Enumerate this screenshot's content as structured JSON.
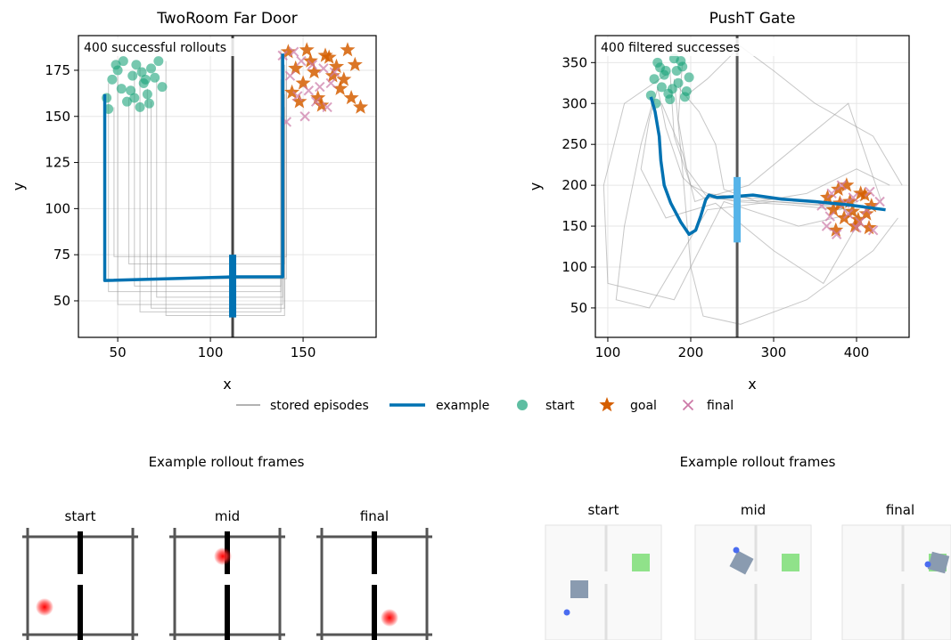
{
  "chart_data": [
    {
      "type": "line",
      "title": "TwoRoom Far Door",
      "xlabel": "x",
      "ylabel": "y",
      "annotation": "400 successful rollouts",
      "xlim": [
        28.8,
        189.4
      ],
      "ylim": [
        30.2,
        193.8
      ],
      "xticks": [
        50,
        100,
        150
      ],
      "yticks": [
        50,
        75,
        100,
        125,
        150,
        175
      ],
      "grid": true,
      "wall": {
        "x": 112,
        "color": "#444444"
      },
      "door": {
        "x": 112,
        "y": [
          41,
          75
        ],
        "color": "#0072b2"
      },
      "series": [
        {
          "name": "stored episodes",
          "marker": "line",
          "color": "#999999",
          "episodes": [
            {
              "x": [
                45,
                45,
                138,
                138
              ],
              "y": [
                168,
                55,
                55,
                170
              ]
            },
            {
              "x": [
                50,
                50,
                139,
                139
              ],
              "y": [
                172,
                48,
                48,
                160
              ]
            },
            {
              "x": [
                56,
                56,
                140,
                140
              ],
              "y": [
                160,
                70,
                70,
                178
              ]
            },
            {
              "x": [
                62,
                62,
                138,
                138
              ],
              "y": [
                177,
                44,
                44,
                150
              ]
            },
            {
              "x": [
                66,
                66,
                141,
                141
              ],
              "y": [
                165,
                62,
                62,
                183
              ]
            },
            {
              "x": [
                71,
                71,
                139,
                139
              ],
              "y": [
                170,
                52,
                52,
                168
              ]
            },
            {
              "x": [
                76,
                76,
                140,
                140
              ],
              "y": [
                180,
                42,
                42,
                155
              ]
            },
            {
              "x": [
                48,
                48,
                141,
                141
              ],
              "y": [
                155,
                74,
                74,
                174
              ]
            },
            {
              "x": [
                59,
                59,
                138,
                138
              ],
              "y": [
                174,
                58,
                58,
                186
              ]
            },
            {
              "x": [
                68,
                68,
                140,
                140
              ],
              "y": [
                158,
                46,
                46,
                162
              ]
            }
          ]
        },
        {
          "name": "example",
          "marker": "line",
          "color": "#0072b2",
          "x": [
            43,
            43,
            112,
            139,
            139
          ],
          "y": [
            162,
            61,
            63,
            63,
            184
          ]
        },
        {
          "name": "start",
          "marker": "o",
          "color": "#1aa37a",
          "x": [
            44,
            47,
            50,
            52,
            55,
            58,
            60,
            62,
            64,
            66,
            68,
            70,
            72,
            45,
            53,
            57,
            63,
            67,
            74,
            49,
            59,
            65
          ],
          "y": [
            160,
            170,
            175,
            165,
            158,
            172,
            178,
            155,
            168,
            162,
            176,
            171,
            180,
            154,
            180,
            164,
            174,
            157,
            166,
            178,
            160,
            170
          ]
        },
        {
          "name": "goal",
          "marker": "*",
          "color": "#d55e00",
          "x": [
            142,
            146,
            150,
            154,
            158,
            162,
            166,
            170,
            174,
            178,
            181,
            148,
            156,
            164,
            172,
            144,
            160,
            176,
            152,
            168
          ],
          "y": [
            185,
            176,
            168,
            180,
            160,
            183,
            172,
            165,
            186,
            178,
            155,
            158,
            174,
            182,
            170,
            163,
            156,
            160,
            186,
            177
          ]
        },
        {
          "name": "final",
          "marker": "x",
          "color": "#cc79a7",
          "x": [
            139,
            143,
            147,
            151,
            155,
            159,
            163,
            167,
            141,
            149,
            157,
            165,
            145,
            153,
            161
          ],
          "y": [
            183,
            172,
            161,
            150,
            178,
            166,
            155,
            174,
            147,
            180,
            158,
            168,
            185,
            164,
            176
          ]
        }
      ]
    },
    {
      "type": "line",
      "title": "PushT Gate",
      "xlabel": "x",
      "ylabel": "y",
      "annotation": "400 filtered successes",
      "xlim": [
        85,
        463.4
      ],
      "ylim": [
        14,
        383
      ],
      "xticks": [
        100,
        200,
        300,
        400
      ],
      "yticks": [
        50,
        100,
        150,
        200,
        250,
        300,
        350
      ],
      "grid": true,
      "wall": {
        "x": 256,
        "color": "#555555"
      },
      "door": {
        "x": 256,
        "y": [
          130,
          210
        ],
        "color": "#56b4e9"
      },
      "series": [
        {
          "marker": "line",
          "color": "#999999",
          "episodes": [
            {
              "x": [
                160,
                170,
                190,
                215,
                250,
                300,
                360,
                390
              ],
              "y": [
                320,
                270,
                210,
                185,
                182,
                180,
                175,
                170
              ]
            },
            {
              "x": [
                175,
                180,
                200,
                220,
                260,
                310,
                370,
                405
              ],
              "y": [
                340,
                260,
                200,
                190,
                185,
                182,
                178,
                160
              ]
            },
            {
              "x": [
                190,
                185,
                195,
                218,
                255,
                320,
                380,
                410
              ],
              "y": [
                350,
                280,
                220,
                188,
                180,
                176,
                170,
                185
              ]
            },
            {
              "x": [
                155,
                140,
                120,
                110,
                150,
                220,
                300,
                380
              ],
              "y": [
                305,
                250,
                150,
                60,
                50,
                170,
                180,
                175
              ]
            },
            {
              "x": [
                185,
                210,
                230,
                240,
                280,
                340,
                400,
                440
              ],
              "y": [
                320,
                290,
                250,
                195,
                180,
                190,
                220,
                200
              ]
            },
            {
              "x": [
                170,
                120,
                95,
                100,
                180,
                240,
                330,
                395
              ],
              "y": [
                335,
                300,
                200,
                80,
                60,
                180,
                150,
                165
              ]
            },
            {
              "x": [
                195,
                220,
                240,
                260,
                300,
                350,
                420,
                455
              ],
              "y": [
                310,
                330,
                350,
                370,
                340,
                300,
                260,
                200
              ]
            },
            {
              "x": [
                165,
                190,
                205,
                222,
                270,
                330,
                390,
                430
              ],
              "y": [
                300,
                240,
                180,
                186,
                200,
                250,
                300,
                180
              ]
            },
            {
              "x": [
                180,
                190,
                200,
                215,
                260,
                340,
                420,
                450
              ],
              "y": [
                330,
                220,
                100,
                40,
                30,
                60,
                120,
                160
              ]
            },
            {
              "x": [
                160,
                150,
                140,
                170,
                230,
                300,
                360,
                400
              ],
              "y": [
                318,
                280,
                220,
                160,
                178,
                120,
                80,
                150
              ]
            }
          ]
        },
        {
          "marker": "line",
          "color": "#0072b2",
          "x": [
            152,
            157,
            162,
            164,
            168,
            176,
            188,
            198,
            206,
            212,
            218,
            222,
            232,
            250,
            275,
            310,
            350,
            390,
            435
          ],
          "y": [
            308,
            290,
            260,
            230,
            200,
            178,
            155,
            140,
            145,
            162,
            182,
            188,
            185,
            186,
            188,
            183,
            180,
            176,
            170
          ]
        },
        {
          "marker": "o",
          "color": "#1aa37a",
          "x": [
            152,
            156,
            160,
            165,
            170,
            175,
            180,
            185,
            190,
            195,
            158,
            168,
            178,
            188,
            198,
            163,
            173,
            183,
            193
          ],
          "y": [
            310,
            330,
            350,
            320,
            340,
            305,
            355,
            325,
            345,
            315,
            300,
            335,
            318,
            352,
            332,
            344,
            312,
            340,
            308
          ]
        },
        {
          "marker": "*",
          "color": "#d55e00",
          "x": [
            365,
            372,
            378,
            385,
            392,
            398,
            405,
            412,
            418,
            375,
            388,
            402,
            415,
            380,
            395,
            410
          ],
          "y": [
            185,
            170,
            195,
            160,
            180,
            150,
            190,
            165,
            175,
            145,
            200,
            158,
            148,
            178,
            168,
            188
          ]
        },
        {
          "marker": "x",
          "color": "#cc79a7",
          "x": [
            358,
            364,
            370,
            376,
            382,
            390,
            396,
            404,
            412,
            420,
            428,
            368,
            386,
            400,
            416
          ],
          "y": [
            175,
            150,
            190,
            140,
            200,
            165,
            185,
            155,
            170,
            145,
            180,
            162,
            178,
            148,
            192
          ]
        }
      ]
    }
  ],
  "frames": [
    {
      "title": "Example rollout frames",
      "panels": [
        "start",
        "mid",
        "final"
      ]
    },
    {
      "title": "Example rollout frames",
      "panels": [
        "start",
        "mid",
        "final"
      ]
    }
  ]
}
